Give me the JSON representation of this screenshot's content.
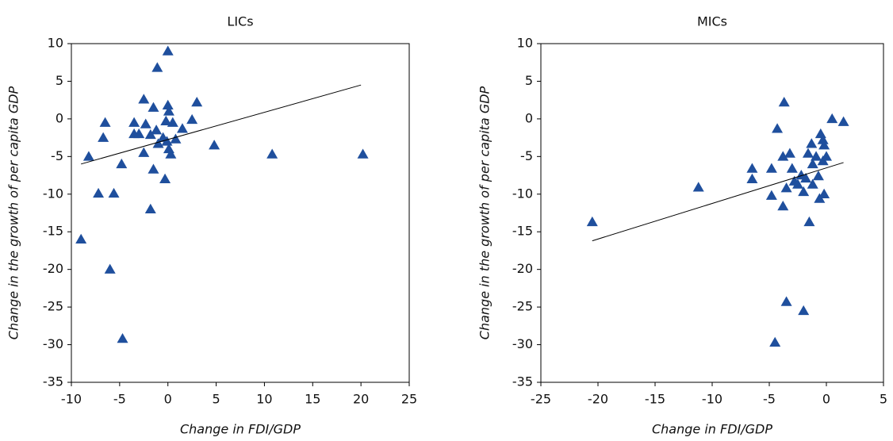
{
  "chart_data": [
    {
      "type": "scatter",
      "title": "LICs",
      "xlabel": "Change in FDI/GDP",
      "ylabel": "Change in the growth of per capita GDP",
      "color": "#1f4f9d",
      "x": [
        0,
        -1.1,
        -2.5,
        3,
        -1.5,
        0,
        0.1,
        -3.5,
        -6.5,
        -2.3,
        -0.2,
        0.5,
        2.5,
        1.5,
        -1.2,
        -1.8,
        -3.5,
        -3.0,
        -6.7,
        -0.5,
        0.8,
        -0.1,
        -1,
        4.8,
        0.1,
        -2.5,
        0.3,
        10.8,
        20.2,
        -8.2,
        -4.8,
        -1.5,
        -0.3,
        -7.2,
        -5.6,
        -1.8,
        -9,
        -6,
        -4.7
      ],
      "y": [
        9,
        6.8,
        2.6,
        2.2,
        1.5,
        1.8,
        1,
        -0.5,
        -0.5,
        -0.7,
        -0.3,
        -0.5,
        -0.1,
        -1.3,
        -1.5,
        -2.1,
        -2,
        -2.0,
        -2.5,
        -2.5,
        -2.7,
        -3,
        -3.3,
        -3.5,
        -4.0,
        -4.5,
        -4.7,
        -4.7,
        -4.7,
        -5,
        -6,
        -6.7,
        -8,
        -9.9,
        -9.9,
        -12,
        -16,
        -20,
        -29.2
      ],
      "trendline": {
        "x": [
          -9,
          20
        ],
        "y": [
          -6,
          4.5
        ]
      },
      "xlim": [
        -10,
        25
      ],
      "xticks": [
        -10,
        -5,
        0,
        5,
        10,
        15,
        20,
        25
      ],
      "ylim": [
        -35,
        10
      ],
      "yticks": [
        -35,
        -30,
        -25,
        -20,
        -15,
        -10,
        -5,
        0,
        5,
        10
      ]
    },
    {
      "type": "scatter",
      "title": "MICs",
      "xlabel": "Change in FDI/GDP",
      "ylabel": "Change in the growth of per capita GDP",
      "color": "#1f4f9d",
      "x": [
        -20.5,
        -11.2,
        -6.5,
        -6.5,
        -4.8,
        -4.8,
        -4.3,
        -3.7,
        -3.8,
        -3.8,
        -3.2,
        -3.5,
        -3.0,
        -2.8,
        -2.5,
        -2.2,
        -2,
        -1.8,
        -1.6,
        -1.5,
        -1.3,
        -1.2,
        -1.2,
        -0.9,
        -0.7,
        -0.6,
        -0.5,
        -0.3,
        -0.2,
        -0.3,
        0,
        -0.2,
        0.5,
        1.5,
        -3.5,
        -2,
        -4.5
      ],
      "y": [
        -13.7,
        -9.1,
        -6.6,
        -8,
        -6.6,
        -10.2,
        -1.3,
        2.2,
        -5,
        -11.6,
        -4.6,
        -9.2,
        -6.6,
        -8.3,
        -8.7,
        -7.5,
        -9.7,
        -7.9,
        -4.6,
        -13.7,
        -3.3,
        -6,
        -8.7,
        -5,
        -7.6,
        -10.6,
        -2,
        -2.8,
        -3.5,
        -5.6,
        -5,
        -10,
        0,
        -0.4,
        -24.3,
        -25.5,
        -29.7
      ],
      "trendline": {
        "x": [
          -20.5,
          1.5
        ],
        "y": [
          -16.2,
          -5.8
        ]
      },
      "xlim": [
        -25,
        5
      ],
      "xticks": [
        -25,
        -20,
        -15,
        -10,
        -5,
        0,
        5
      ],
      "ylim": [
        -35,
        10
      ],
      "yticks": [
        -35,
        -30,
        -25,
        -20,
        -15,
        -10,
        -5,
        0,
        5,
        10
      ]
    }
  ]
}
